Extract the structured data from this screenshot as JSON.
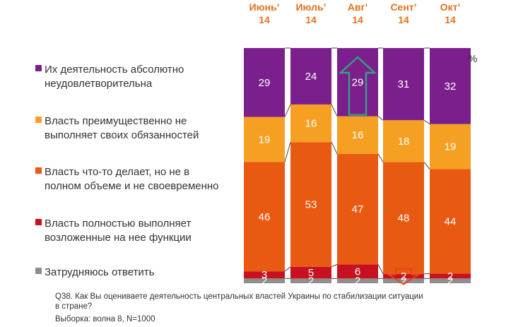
{
  "colors": {
    "s1": "#7a1f8c",
    "s2": "#f5a023",
    "s3": "#e85a12",
    "s4": "#c8101e",
    "s5": "#8e8e8e",
    "header": "#e2711d",
    "arrow_up": "#3b9a82",
    "arrow_down": "#e8441c"
  },
  "chart_data": {
    "type": "bar",
    "stacked": true,
    "unit": "%",
    "categories": [
      {
        "line1": "Июнь’",
        "line2": "14"
      },
      {
        "line1": "Июль’",
        "line2": "14"
      },
      {
        "line1": "Авг’",
        "line2": "14"
      },
      {
        "line1": "Сент’",
        "line2": "14"
      },
      {
        "line1": "Окт’",
        "line2": "14"
      }
    ],
    "series": [
      {
        "name": "Затрудняюсь ответить",
        "legend_lines": [
          "Затрудняюсь ответить"
        ],
        "color": "#8e8e8e",
        "values": [
          2,
          2,
          2,
          2,
          2
        ]
      },
      {
        "name": "Власть полностью выполняет возложенные на нее функции",
        "legend_lines": [
          "Власть полностью выполняет",
          "возложенные на нее функции"
        ],
        "color": "#c8101e",
        "values": [
          3,
          5,
          6,
          2,
          2
        ]
      },
      {
        "name": "Власть что-то делает, но не в полном объеме и не своевременно",
        "legend_lines": [
          "Власть что-то делает, но не в",
          "полном объеме и не своевременно"
        ],
        "color": "#e85a12",
        "values": [
          46,
          53,
          47,
          48,
          44
        ]
      },
      {
        "name": "Власть преимущественно не выполняет своих обязанностей",
        "legend_lines": [
          "Власть преимущественно не",
          "выполняет своих обязанностей"
        ],
        "color": "#f5a023",
        "values": [
          19,
          16,
          16,
          18,
          19
        ]
      },
      {
        "name": "Их деятельность абсолютно неудовлетворительна",
        "legend_lines": [
          "Их деятельность абсолютно",
          "неудовлетворительна"
        ],
        "color": "#7a1f8c",
        "values": [
          29,
          24,
          29,
          31,
          32
        ]
      }
    ],
    "annotations": [
      {
        "type": "arrow-up",
        "category": "Авг’",
        "series": "Их деятельность абсолютно неудовлетворительна"
      },
      {
        "type": "arrow-down",
        "category": "Сент’",
        "series": "Власть полностью выполняет возложенные на нее функции"
      }
    ]
  },
  "footnote": {
    "question_line1": "Q38. Как Вы оцениваете деятельность центральных властей Украины по стабилизации ситуации",
    "question_line2": "в стране?",
    "sample": "Выборка: волна 8, N=1000"
  }
}
